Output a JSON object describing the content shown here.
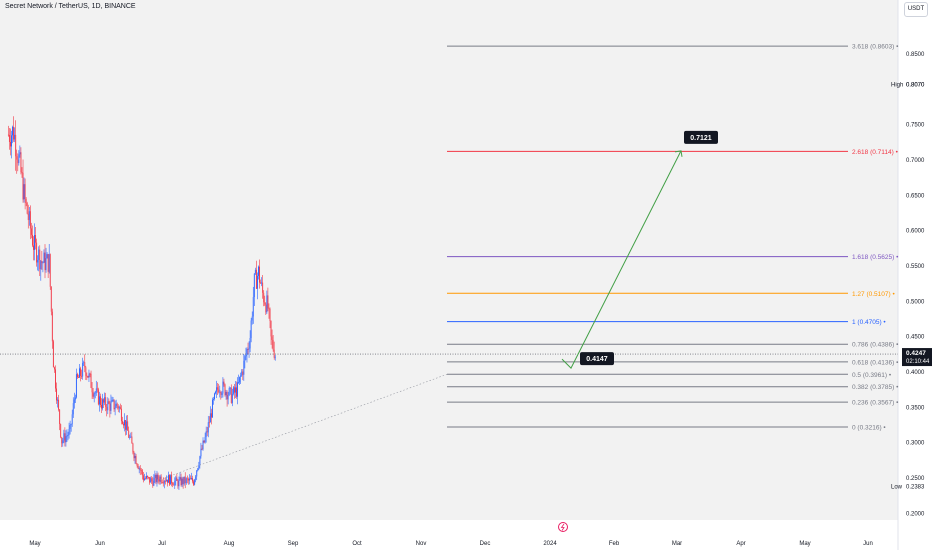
{
  "header": {
    "title": "Secret Network / TetherUS, 1D, BINANCE",
    "currency_button": "USDT"
  },
  "colors": {
    "background": "#f2f2f2",
    "up": "#2962ff",
    "down": "#f23645",
    "projection": "#43a047"
  },
  "chart_data": {
    "type": "candlestick",
    "y_axis": {
      "ylim": [
        0.19,
        0.9
      ],
      "ticks": [
        "0.8500",
        "0.8070",
        "0.7500",
        "0.7000",
        "0.6500",
        "0.6000",
        "0.5500",
        "0.5000",
        "0.4500",
        "0.4000",
        "0.3500",
        "0.3000",
        "0.2500",
        "0.2000"
      ],
      "high_label": "High",
      "high_value": "0.8070",
      "low_label": "Low",
      "low_value": "0.2383",
      "current_price": "0.4247",
      "countdown": "02:10:44"
    },
    "x_axis": {
      "ticks": [
        "May",
        "Jun",
        "Jul",
        "Aug",
        "Sep",
        "Oct",
        "Nov",
        "Dec",
        "2024",
        "Feb",
        "Mar",
        "Apr",
        "May",
        "Jun"
      ]
    },
    "fib_levels": [
      {
        "label": "3.618 (0.8603)",
        "value": 0.8603,
        "color": "#787b86"
      },
      {
        "label": "2.618 (0.7114)",
        "value": 0.7114,
        "color": "#f23645"
      },
      {
        "label": "1.618 (0.5625)",
        "value": 0.5625,
        "color": "#7e57c2"
      },
      {
        "label": "1.27 (0.5107)",
        "value": 0.5107,
        "color": "#ff9800"
      },
      {
        "label": "1 (0.4705)",
        "value": 0.4705,
        "color": "#2962ff"
      },
      {
        "label": "0.786 (0.4386)",
        "value": 0.4386,
        "color": "#787b86"
      },
      {
        "label": "0.618 (0.4136)",
        "value": 0.4136,
        "color": "#787b86"
      },
      {
        "label": "0.5 (0.3961)",
        "value": 0.3961,
        "color": "#787b86"
      },
      {
        "label": "0.382 (0.3785)",
        "value": 0.3785,
        "color": "#787b86"
      },
      {
        "label": "0.236 (0.3567)",
        "value": 0.3567,
        "color": "#787b86"
      },
      {
        "label": "0 (0.3216)",
        "value": 0.3216,
        "color": "#787b86"
      }
    ],
    "annotations": [
      {
        "label": "0.7121",
        "value": 0.7121
      },
      {
        "label": "0.4147",
        "value": 0.4147
      }
    ],
    "price_anchors": [
      [
        "Apr 28",
        0.735
      ],
      [
        "May 3",
        0.74
      ],
      [
        "May 8",
        0.7
      ],
      [
        "May 14",
        0.64
      ],
      [
        "May 22",
        0.58
      ],
      [
        "May 30",
        0.555
      ],
      [
        "Jun 6",
        0.555
      ],
      [
        "Jun 10",
        0.415
      ],
      [
        "Jun 14",
        0.355
      ],
      [
        "Jun 18",
        0.302
      ],
      [
        "Jun 26",
        0.315
      ],
      [
        "Jul 2",
        0.385
      ],
      [
        "Jul 10",
        0.408
      ],
      [
        "Jul 18",
        0.375
      ],
      [
        "Jul 26",
        0.355
      ],
      [
        "Aug 3",
        0.352
      ],
      [
        "Aug 11",
        0.352
      ],
      [
        "Aug 19",
        0.32
      ],
      [
        "Aug 27",
        0.28
      ],
      [
        "Sep 4",
        0.25
      ],
      [
        "Sep 12",
        0.245
      ],
      [
        "Sep 20",
        0.25
      ],
      [
        "Sep 28",
        0.248
      ],
      [
        "Oct 6",
        0.243
      ],
      [
        "Oct 14",
        0.245
      ],
      [
        "Oct 22",
        0.245
      ],
      [
        "Oct 28",
        0.28
      ],
      [
        "Nov 3",
        0.31
      ],
      [
        "Nov 9",
        0.35
      ],
      [
        "Nov 15",
        0.38
      ],
      [
        "Nov 21",
        0.375
      ],
      [
        "Nov 27",
        0.365
      ],
      [
        "Dec 3",
        0.375
      ],
      [
        "Dec 9",
        0.41
      ],
      [
        "Dec 15",
        0.45
      ],
      [
        "Dec 19",
        0.525
      ],
      [
        "Dec 23",
        0.54
      ],
      [
        "Dec 27",
        0.51
      ],
      [
        "Jan 1",
        0.49
      ],
      [
        "Jan 4",
        0.445
      ],
      [
        "Jan 8",
        0.4247
      ]
    ]
  }
}
